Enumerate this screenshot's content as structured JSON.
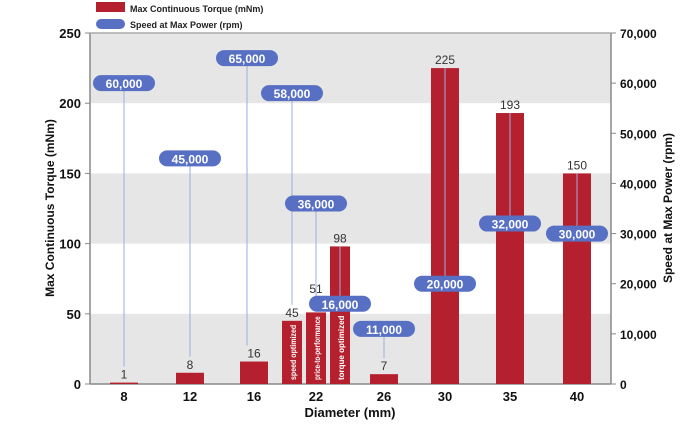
{
  "chart_data": {
    "type": "bar",
    "xlabel": "Diameter (mm)",
    "ylabel": "Max Continuous Torque (mNm)",
    "y2label": "Speed at Max Power (rpm)",
    "ylim": [
      0,
      250
    ],
    "y2lim": [
      0,
      70000
    ],
    "yticks": [
      "0",
      "50",
      "100",
      "150",
      "200",
      "250"
    ],
    "y2ticks": [
      "0",
      "10,000",
      "20,000",
      "30,000",
      "40,000",
      "50,000",
      "60,000",
      "70,000"
    ],
    "categories": [
      "8",
      "12",
      "16",
      "22",
      "26",
      "30",
      "35",
      "40"
    ],
    "legend": [
      {
        "label": "Max Continuous Torque (mNm)",
        "color": "#b5202e",
        "shape": "rect"
      },
      {
        "label": "Speed at Max Power (rpm)",
        "color": "#5870c4",
        "shape": "pill"
      }
    ],
    "bars": [
      {
        "category": "8",
        "torque": 1,
        "speed": 60000,
        "speed_label": "60,000"
      },
      {
        "category": "12",
        "torque": 8,
        "speed": 45000,
        "speed_label": "45,000"
      },
      {
        "category": "16",
        "torque": 16,
        "speed": 65000,
        "speed_label": "65,000"
      },
      {
        "category": "22",
        "torque": 45,
        "speed": 58000,
        "speed_label": "58,000",
        "inner_label": "speed optimized"
      },
      {
        "category": "22",
        "torque": 51,
        "speed": 36000,
        "speed_label": "36,000",
        "inner_label": "price-to-performance"
      },
      {
        "category": "22",
        "torque": 98,
        "speed": 16000,
        "speed_label": "16,000",
        "inner_label": "torque optimized"
      },
      {
        "category": "26",
        "torque": 7,
        "speed": 11000,
        "speed_label": "11,000"
      },
      {
        "category": "30",
        "torque": 225,
        "speed": 20000,
        "speed_label": "20,000"
      },
      {
        "category": "35",
        "torque": 193,
        "speed": 32000,
        "speed_label": "32,000"
      },
      {
        "category": "40",
        "torque": 150,
        "speed": 30000,
        "speed_label": "30,000"
      }
    ],
    "colors": {
      "bar": "#b5202e",
      "pill": "#5870c4",
      "line": "#9aaee0",
      "band": "#e6e6e6"
    }
  }
}
